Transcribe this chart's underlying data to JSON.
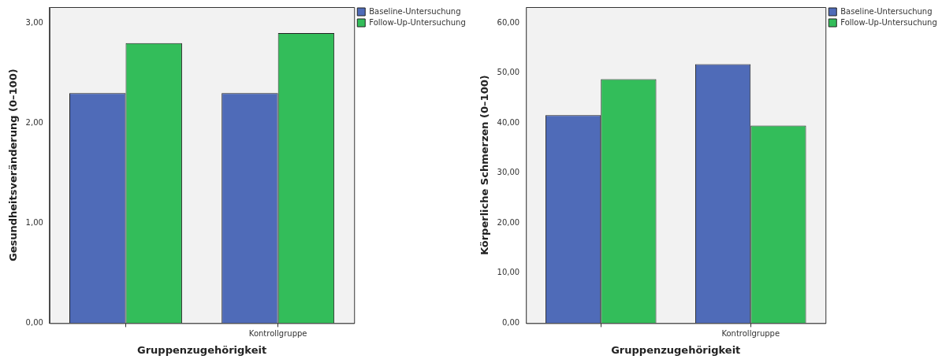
{
  "chart_data": [
    {
      "type": "bar",
      "xlabel": "Gruppenzugehörigkeit",
      "ylabel": "Gesundheitsveränderung (0–100)",
      "categories": [
        null,
        "Kontrollgruppe"
      ],
      "series": [
        {
          "name": "Baseline-Untersuchung",
          "color": "#4f6bb8",
          "values": [
            2.3,
            2.3
          ]
        },
        {
          "name": "Follow-Up-Untersuchung",
          "color": "#33bd5a",
          "values": [
            2.8,
            2.9
          ]
        }
      ],
      "ylim": [
        0,
        3.16
      ],
      "yticks": [
        {
          "value": 0,
          "label": "0,00"
        },
        {
          "value": 1,
          "label": "1,00"
        },
        {
          "value": 2,
          "label": "2,00"
        },
        {
          "value": 3,
          "label": "3,00"
        }
      ],
      "grid": false,
      "legend": "right"
    },
    {
      "type": "bar",
      "xlabel": "Gruppenzugehörigkeit",
      "ylabel": "Körperliche Schmerzen (0–100)",
      "categories": [
        null,
        "Kontrollgruppe"
      ],
      "series": [
        {
          "name": "Baseline-Untersuchung",
          "color": "#4f6bb8",
          "values": [
            41.6,
            51.8
          ]
        },
        {
          "name": "Follow-Up-Untersuchung",
          "color": "#33bd5a",
          "values": [
            48.8,
            39.5
          ]
        }
      ],
      "ylim": [
        0,
        63.2
      ],
      "yticks": [
        {
          "value": 0,
          "label": "0,00"
        },
        {
          "value": 10,
          "label": "10,00"
        },
        {
          "value": 20,
          "label": "20,00"
        },
        {
          "value": 30,
          "label": "30,00"
        },
        {
          "value": 40,
          "label": "40,00"
        },
        {
          "value": 50,
          "label": "50,00"
        },
        {
          "value": 60,
          "label": "60,00"
        }
      ],
      "grid": false,
      "legend": "right"
    }
  ]
}
